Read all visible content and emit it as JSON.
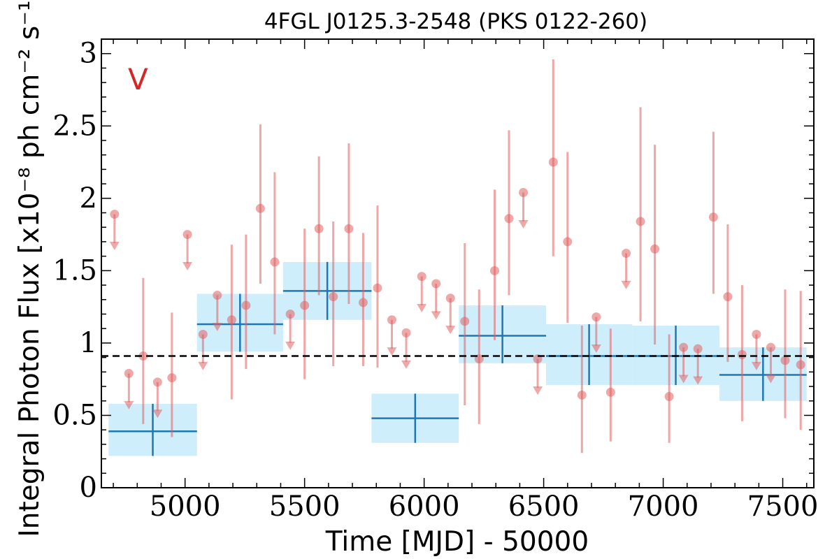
{
  "chart_data": {
    "type": "scatter",
    "title": "4FGL J0125.3-2548 (PKS 0122-260)",
    "xlabel": "Time [MJD] - 50000",
    "ylabel": "Integral Photon Flux [x10⁻⁸ ph cm⁻² s⁻¹]",
    "panel_label": "V",
    "xlim": [
      4650,
      7630
    ],
    "ylim": [
      0,
      3.1
    ],
    "xticks": [
      5000,
      5500,
      6000,
      6500,
      7000,
      7500
    ],
    "yticks": [
      0,
      0.5,
      1,
      1.5,
      2,
      2.5,
      3
    ],
    "ytick_labels": [
      "0",
      "0.5",
      "1",
      "1.5",
      "2",
      "2.5",
      "3"
    ],
    "mean_flux": 0.91,
    "colors": {
      "points": "#e06060",
      "long_bins_fill": "#bfe8fb",
      "long_bins_line": "#1f77b4",
      "mean_line": "#000000",
      "panel_label": "#d62728"
    },
    "series": [
      {
        "name": "",
        "kind": "long_bins",
        "points": [
          {
            "x0": 4680,
            "x1": 5050,
            "y": 0.39,
            "ylo": 0.22,
            "yhi": 0.58
          },
          {
            "x0": 5050,
            "x1": 5410,
            "y": 1.13,
            "ylo": 0.94,
            "yhi": 1.34
          },
          {
            "x0": 5410,
            "x1": 5780,
            "y": 1.36,
            "ylo": 1.16,
            "yhi": 1.56
          },
          {
            "x0": 5780,
            "x1": 6145,
            "y": 0.48,
            "ylo": 0.31,
            "yhi": 0.65
          },
          {
            "x0": 6145,
            "x1": 6510,
            "y": 1.05,
            "ylo": 0.86,
            "yhi": 1.26
          },
          {
            "x0": 6510,
            "x1": 6870,
            "y": 0.91,
            "ylo": 0.71,
            "yhi": 1.13
          },
          {
            "x0": 6870,
            "x1": 7235,
            "y": 0.91,
            "ylo": 0.71,
            "yhi": 1.12
          },
          {
            "x0": 7235,
            "x1": 7600,
            "y": 0.78,
            "ylo": 0.6,
            "yhi": 0.97
          }
        ]
      },
      {
        "name": "",
        "kind": "short_bins",
        "points": [
          {
            "x": 4705,
            "y": 1.89,
            "ul": true
          },
          {
            "x": 4765,
            "y": 0.79,
            "ul": true
          },
          {
            "x": 4825,
            "y": 0.91,
            "ylo": 0.44,
            "yhi": 1.45
          },
          {
            "x": 4885,
            "y": 0.73,
            "ul": true
          },
          {
            "x": 4945,
            "y": 0.76,
            "ylo": 0.35,
            "yhi": 1.21
          },
          {
            "x": 5010,
            "y": 1.75,
            "ul": true
          },
          {
            "x": 5075,
            "y": 1.06,
            "ul": true
          },
          {
            "x": 5135,
            "y": 1.33,
            "ul": true
          },
          {
            "x": 5195,
            "y": 1.16,
            "ylo": 0.61,
            "yhi": 1.68
          },
          {
            "x": 5255,
            "y": 1.26,
            "ylo": 0.82,
            "yhi": 1.75
          },
          {
            "x": 5315,
            "y": 1.93,
            "ylo": 1.41,
            "yhi": 2.51
          },
          {
            "x": 5375,
            "y": 1.56,
            "ylo": 1.06,
            "yhi": 2.18
          },
          {
            "x": 5440,
            "y": 1.2,
            "ul": true
          },
          {
            "x": 5500,
            "y": 1.26,
            "ylo": 0.75,
            "yhi": 1.79
          },
          {
            "x": 5560,
            "y": 1.79,
            "ylo": 1.33,
            "yhi": 2.29
          },
          {
            "x": 5620,
            "y": 1.32,
            "ylo": 0.84,
            "yhi": 1.84
          },
          {
            "x": 5685,
            "y": 1.79,
            "ylo": 1.27,
            "yhi": 2.38
          },
          {
            "x": 5745,
            "y": 1.28,
            "ylo": 0.84,
            "yhi": 1.76
          },
          {
            "x": 5805,
            "y": 1.38,
            "ylo": 0.83,
            "yhi": 1.95
          },
          {
            "x": 5865,
            "y": 1.16,
            "ul": true
          },
          {
            "x": 5925,
            "y": 1.07,
            "ul": true
          },
          {
            "x": 5990,
            "y": 1.46,
            "ul": true
          },
          {
            "x": 6050,
            "y": 1.41,
            "ul": true
          },
          {
            "x": 6110,
            "y": 1.31,
            "ul": true
          },
          {
            "x": 6170,
            "y": 1.15,
            "ylo": 0.57,
            "yhi": 1.69
          },
          {
            "x": 6230,
            "y": 0.89,
            "ylo": 0.44,
            "yhi": 1.37
          },
          {
            "x": 6295,
            "y": 1.5,
            "ylo": 1.02,
            "yhi": 2.06
          },
          {
            "x": 6355,
            "y": 1.86,
            "ylo": 1.33,
            "yhi": 2.47
          },
          {
            "x": 6415,
            "y": 2.04,
            "ul": true
          },
          {
            "x": 6475,
            "y": 0.89,
            "ul": true
          },
          {
            "x": 6540,
            "y": 2.25,
            "ylo": 1.6,
            "yhi": 2.96
          },
          {
            "x": 6600,
            "y": 1.7,
            "ylo": 1.14,
            "yhi": 2.32
          },
          {
            "x": 6660,
            "y": 0.64,
            "ylo": 0.24,
            "yhi": 1.12
          },
          {
            "x": 6720,
            "y": 1.18,
            "ul": true
          },
          {
            "x": 6780,
            "y": 0.66,
            "ylo": 0.32,
            "yhi": 1.1
          },
          {
            "x": 6845,
            "y": 1.62,
            "ul": true
          },
          {
            "x": 6905,
            "y": 1.84,
            "ylo": 1.15,
            "yhi": 2.63
          },
          {
            "x": 6965,
            "y": 1.65,
            "ylo": 0.99,
            "yhi": 2.37
          },
          {
            "x": 7025,
            "y": 0.63,
            "ylo": 0.31,
            "yhi": 1.06
          },
          {
            "x": 7085,
            "y": 0.97,
            "ul": true
          },
          {
            "x": 7145,
            "y": 0.96,
            "ul": true
          },
          {
            "x": 7210,
            "y": 1.87,
            "ylo": 1.34,
            "yhi": 2.46
          },
          {
            "x": 7270,
            "y": 1.32,
            "ylo": 0.87,
            "yhi": 1.82
          },
          {
            "x": 7330,
            "y": 0.92,
            "ylo": 0.46,
            "yhi": 1.4
          },
          {
            "x": 7390,
            "y": 1.06,
            "ul": true
          },
          {
            "x": 7450,
            "y": 0.97,
            "ul": true
          },
          {
            "x": 7510,
            "y": 0.88,
            "ylo": 0.48,
            "yhi": 1.37
          },
          {
            "x": 7575,
            "y": 0.85,
            "ylo": 0.4,
            "yhi": 1.36
          }
        ]
      }
    ]
  }
}
